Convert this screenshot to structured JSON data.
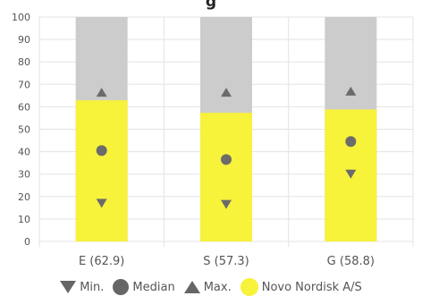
{
  "chart_data": {
    "type": "bar",
    "title": "g",
    "categories": [
      "E (62.9)",
      "S (57.3)",
      "G (58.8)"
    ],
    "values": [
      62.9,
      57.3,
      58.8
    ],
    "min": [
      17,
      16.5,
      30
    ],
    "median": [
      40.5,
      36.5,
      44.5
    ],
    "max": [
      66.5,
      66.5,
      67
    ],
    "ylim": [
      0,
      100
    ],
    "yticks": [
      0,
      10,
      20,
      30,
      40,
      50,
      60,
      70,
      80,
      90,
      100
    ],
    "grid": true,
    "legend": {
      "placement": "bottom",
      "items": [
        {
          "label": "Min.",
          "icon": "triangle-down-icon"
        },
        {
          "label": "Median",
          "icon": "circle-icon"
        },
        {
          "label": "Max.",
          "icon": "triangle-up-icon"
        },
        {
          "label": "Novo Nordisk A/S",
          "icon": "yellow-circle-icon"
        }
      ]
    },
    "colors": {
      "bar": "#f7f23a",
      "background_bar": "#cccccc",
      "marker": "#6b6b6b",
      "grid": "#e3e3e3",
      "text": "#555555"
    }
  }
}
